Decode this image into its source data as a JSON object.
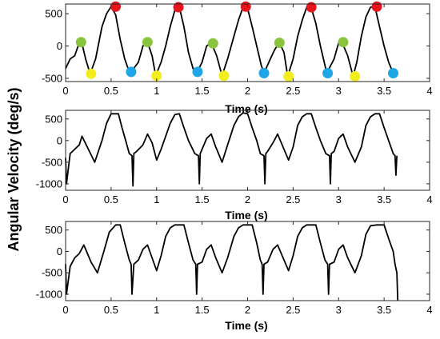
{
  "figure": {
    "ylabel": "Angular Velocity (deg/s)",
    "marker_colors": {
      "peak": "#e8141b",
      "green": "#8ac43f",
      "yellow": "#f2ee1e",
      "cyan": "#1ea6e6"
    }
  },
  "chart_data": [
    {
      "type": "line",
      "xlabel": "Time (s)",
      "ylabel": "",
      "xlim": [
        0,
        4
      ],
      "ylim": [
        -550,
        650
      ],
      "xticks": [
        0,
        0.5,
        1,
        1.5,
        2,
        2.5,
        3,
        3.5,
        4
      ],
      "xtick_labels": [
        "0",
        "0.5",
        "1",
        "1.5",
        "2",
        "2.5",
        "3",
        "3.5",
        "4"
      ],
      "yticks": [
        -500,
        0,
        500
      ],
      "ytick_labels": [
        "-500",
        "0",
        "500"
      ],
      "grid": false,
      "series": [
        {
          "x": [
            0.0,
            0.05,
            0.1,
            0.15,
            0.18,
            0.22,
            0.27,
            0.33,
            0.4,
            0.45,
            0.5,
            0.55,
            0.6,
            0.65,
            0.7,
            0.72,
            0.8,
            0.85,
            0.9,
            0.95,
            0.99,
            1.05,
            1.1,
            1.15,
            1.2,
            1.25,
            1.3,
            1.35,
            1.4,
            1.44,
            1.5,
            1.55,
            1.6,
            1.66,
            1.72,
            1.78,
            1.85,
            1.9,
            1.95,
            2.0,
            2.05,
            2.1,
            2.15,
            2.18,
            2.25,
            2.3,
            2.35,
            2.4,
            2.44,
            2.5,
            2.55,
            2.6,
            2.65,
            2.7,
            2.75,
            2.8,
            2.87,
            2.95,
            3.0,
            3.04,
            3.1,
            3.16,
            3.2,
            3.25,
            3.3,
            3.35,
            3.4,
            3.45,
            3.5,
            3.55,
            3.6
          ],
          "y": [
            -350,
            -200,
            -150,
            50,
            40,
            -200,
            -430,
            -200,
            300,
            500,
            610,
            480,
            100,
            -200,
            -400,
            -400,
            -250,
            0,
            60,
            -150,
            -460,
            -250,
            0,
            300,
            550,
            600,
            300,
            -100,
            -350,
            -420,
            -250,
            0,
            50,
            -150,
            -460,
            -200,
            150,
            400,
            600,
            580,
            300,
            0,
            -300,
            -420,
            -200,
            -50,
            50,
            -100,
            -470,
            -200,
            150,
            400,
            600,
            590,
            350,
            0,
            -420,
            -200,
            50,
            50,
            -150,
            -470,
            -250,
            150,
            450,
            600,
            600,
            300,
            0,
            -250,
            -420
          ]
        }
      ],
      "markers": {
        "peak": [
          [
            0.55,
            610
          ],
          [
            1.24,
            600
          ],
          [
            1.98,
            610
          ],
          [
            2.7,
            600
          ],
          [
            3.42,
            610
          ]
        ],
        "green": [
          [
            0.17,
            60
          ],
          [
            0.9,
            60
          ],
          [
            1.62,
            40
          ],
          [
            2.35,
            50
          ],
          [
            3.05,
            60
          ]
        ],
        "yellow": [
          [
            0.28,
            -430
          ],
          [
            1.0,
            -460
          ],
          [
            1.74,
            -460
          ],
          [
            2.45,
            -470
          ],
          [
            3.18,
            -470
          ]
        ],
        "cyan": [
          [
            0.72,
            -400
          ],
          [
            1.45,
            -400
          ],
          [
            2.18,
            -420
          ],
          [
            2.88,
            -420
          ],
          [
            3.6,
            -420
          ]
        ]
      }
    },
    {
      "type": "line",
      "xlabel": "Time (s)",
      "ylabel": "",
      "xlim": [
        0,
        4
      ],
      "ylim": [
        -1150,
        700
      ],
      "xticks": [
        0,
        0.5,
        1,
        1.5,
        2,
        2.5,
        3,
        3.5,
        4
      ],
      "xtick_labels": [
        "0",
        "0.5",
        "1",
        "1.5",
        "2",
        "2.5",
        "3",
        "3.5",
        "4"
      ],
      "yticks": [
        -1000,
        -500,
        0,
        500
      ],
      "ytick_labels": [
        "-1000",
        "-500",
        "0",
        "500"
      ],
      "grid": false,
      "series": [
        {
          "x": [
            0.0,
            0.01,
            0.05,
            0.1,
            0.15,
            0.18,
            0.25,
            0.32,
            0.4,
            0.45,
            0.5,
            0.58,
            0.62,
            0.66,
            0.7,
            0.73,
            0.74,
            0.75,
            0.78,
            0.85,
            0.9,
            0.95,
            1.0,
            1.05,
            1.1,
            1.15,
            1.2,
            1.25,
            1.3,
            1.35,
            1.42,
            1.46,
            1.47,
            1.48,
            1.5,
            1.55,
            1.6,
            1.65,
            1.72,
            1.78,
            1.85,
            1.9,
            1.95,
            2.0,
            2.05,
            2.1,
            2.14,
            2.18,
            2.19,
            2.2,
            2.22,
            2.28,
            2.33,
            2.38,
            2.45,
            2.5,
            2.55,
            2.6,
            2.65,
            2.7,
            2.75,
            2.8,
            2.86,
            2.9,
            2.91,
            2.92,
            2.95,
            3.0,
            3.05,
            3.1,
            3.18,
            3.25,
            3.3,
            3.35,
            3.4,
            3.45,
            3.5,
            3.55,
            3.6,
            3.62,
            3.63,
            3.64
          ],
          "y": [
            -400,
            -1000,
            -300,
            -200,
            -100,
            100,
            -200,
            -500,
            0,
            400,
            620,
            620,
            300,
            0,
            -300,
            -350,
            -1050,
            -300,
            -250,
            -100,
            150,
            -50,
            -450,
            -200,
            100,
            400,
            600,
            620,
            300,
            0,
            -300,
            -350,
            -1000,
            -300,
            -200,
            50,
            150,
            -150,
            -500,
            -100,
            350,
            550,
            640,
            620,
            300,
            0,
            -300,
            -350,
            -1000,
            -300,
            -250,
            -50,
            150,
            -100,
            -450,
            -150,
            350,
            550,
            620,
            620,
            300,
            0,
            -300,
            -350,
            -1000,
            -300,
            -250,
            50,
            150,
            -150,
            -500,
            -150,
            350,
            550,
            620,
            620,
            300,
            0,
            -300,
            -350,
            -800,
            -350
          ]
        }
      ]
    },
    {
      "type": "line",
      "xlabel": "Time (s)",
      "ylabel": "",
      "xlim": [
        0,
        4
      ],
      "ylim": [
        -1150,
        700
      ],
      "xticks": [
        0,
        0.5,
        1,
        1.5,
        2,
        2.5,
        3,
        3.5,
        4
      ],
      "xtick_labels": [
        "0",
        "0.5",
        "1",
        "1.5",
        "2",
        "2.5",
        "3",
        "3.5",
        "4"
      ],
      "yticks": [
        -1000,
        -500,
        0,
        500
      ],
      "ytick_labels": [
        "-1000",
        "-500",
        "0",
        "500"
      ],
      "grid": false,
      "series": [
        {
          "x": [
            0.0,
            0.01,
            0.05,
            0.1,
            0.15,
            0.2,
            0.28,
            0.35,
            0.42,
            0.48,
            0.55,
            0.6,
            0.65,
            0.7,
            0.72,
            0.73,
            0.75,
            0.8,
            0.85,
            0.9,
            0.95,
            1.0,
            1.05,
            1.1,
            1.15,
            1.2,
            1.3,
            1.35,
            1.4,
            1.43,
            1.44,
            1.45,
            1.5,
            1.55,
            1.6,
            1.65,
            1.72,
            1.78,
            1.85,
            1.9,
            1.95,
            2.05,
            2.1,
            2.14,
            2.16,
            2.17,
            2.18,
            2.22,
            2.28,
            2.33,
            2.38,
            2.45,
            2.5,
            2.55,
            2.6,
            2.65,
            2.75,
            2.8,
            2.85,
            2.88,
            2.89,
            2.9,
            2.95,
            3.0,
            3.05,
            3.1,
            3.18,
            3.25,
            3.3,
            3.35,
            3.42,
            3.5,
            3.55,
            3.6,
            3.62,
            3.64,
            3.65
          ],
          "y": [
            -300,
            -1000,
            -350,
            -150,
            -50,
            150,
            -250,
            -500,
            0,
            450,
            620,
            620,
            200,
            -200,
            -300,
            -1000,
            -300,
            -200,
            50,
            150,
            -150,
            -450,
            -100,
            350,
            550,
            620,
            620,
            200,
            -200,
            -300,
            -1000,
            -300,
            -250,
            50,
            150,
            -150,
            -500,
            -150,
            350,
            550,
            620,
            620,
            200,
            -200,
            -300,
            -1000,
            -300,
            -250,
            50,
            150,
            -100,
            -450,
            -100,
            350,
            550,
            620,
            620,
            200,
            -200,
            -300,
            -1000,
            -300,
            -250,
            50,
            150,
            -150,
            -500,
            -100,
            400,
            600,
            620,
            620,
            300,
            0,
            -300,
            -500,
            -1150
          ]
        }
      ]
    }
  ]
}
